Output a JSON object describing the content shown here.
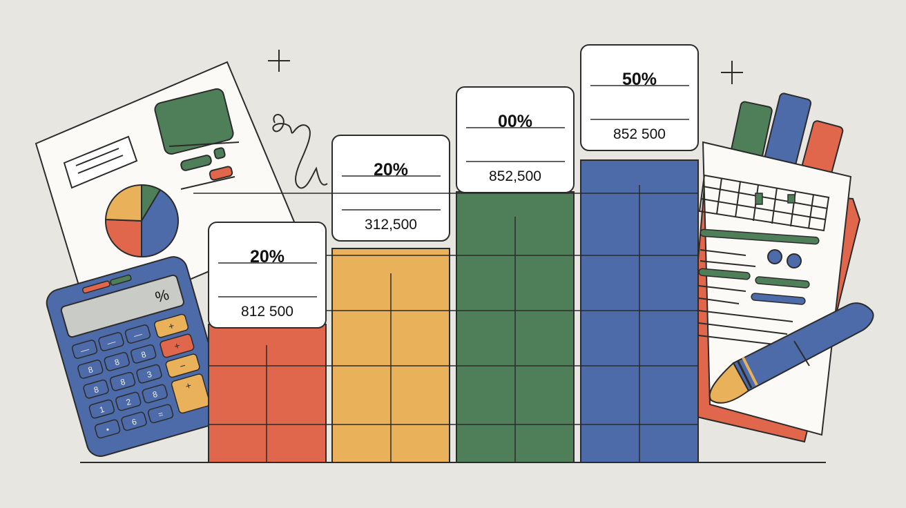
{
  "colors": {
    "background": "#e8e6e1",
    "red": "#e0664c",
    "yellow": "#e9b25a",
    "green": "#4f7f58",
    "blue": "#4d6ba8",
    "ink": "#2b2b2b"
  },
  "bars": [
    {
      "color": "red",
      "percent_label": "20%",
      "amount_label": "812 500"
    },
    {
      "color": "yellow",
      "percent_label": "20%",
      "amount_label": "312,500"
    },
    {
      "color": "green",
      "percent_label": "00%",
      "amount_label": "852,500"
    },
    {
      "color": "blue",
      "percent_label": "50%",
      "amount_label": "852 500"
    }
  ],
  "calculator": {
    "display": "%",
    "keys": [
      "+",
      "+",
      "−",
      "+"
    ]
  },
  "decorations": {
    "report_doc": "report-with-pie-icon",
    "clipboard": "clipboard-icon",
    "pen": "pen-icon",
    "sparkles": "sparkle-icon"
  }
}
